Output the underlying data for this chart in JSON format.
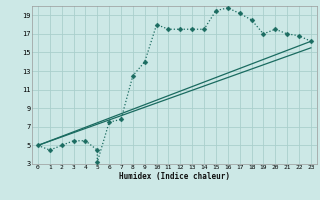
{
  "title": "",
  "xlabel": "Humidex (Indice chaleur)",
  "bg_color": "#cce8e6",
  "grid_color": "#aacfcc",
  "line_color": "#1a6b60",
  "xlim": [
    -0.5,
    23.5
  ],
  "ylim": [
    3,
    20
  ],
  "xticks": [
    0,
    1,
    2,
    3,
    4,
    5,
    6,
    7,
    8,
    9,
    10,
    11,
    12,
    13,
    14,
    15,
    16,
    17,
    18,
    19,
    20,
    21,
    22,
    23
  ],
  "yticks": [
    3,
    5,
    7,
    9,
    11,
    13,
    15,
    17,
    19
  ],
  "line1_x": [
    0,
    1,
    2,
    3,
    4,
    5,
    5,
    6,
    7,
    8,
    9,
    10,
    11,
    12,
    13,
    14,
    15,
    16,
    17,
    18,
    19,
    20,
    21,
    22,
    23
  ],
  "line1_y": [
    5,
    4.5,
    5,
    5.5,
    5.5,
    4.5,
    3.2,
    7.5,
    7.8,
    12.5,
    14,
    18,
    17.5,
    17.5,
    17.5,
    17.5,
    19.5,
    19.8,
    19.2,
    18.5,
    17,
    17.5,
    17,
    16.8,
    16.2
  ],
  "line2_x": [
    0,
    23
  ],
  "line2_y": [
    5,
    16.2
  ],
  "line3_x": [
    0,
    23
  ],
  "line3_y": [
    5,
    15.5
  ],
  "marker_size": 2.5,
  "linewidth": 0.9
}
